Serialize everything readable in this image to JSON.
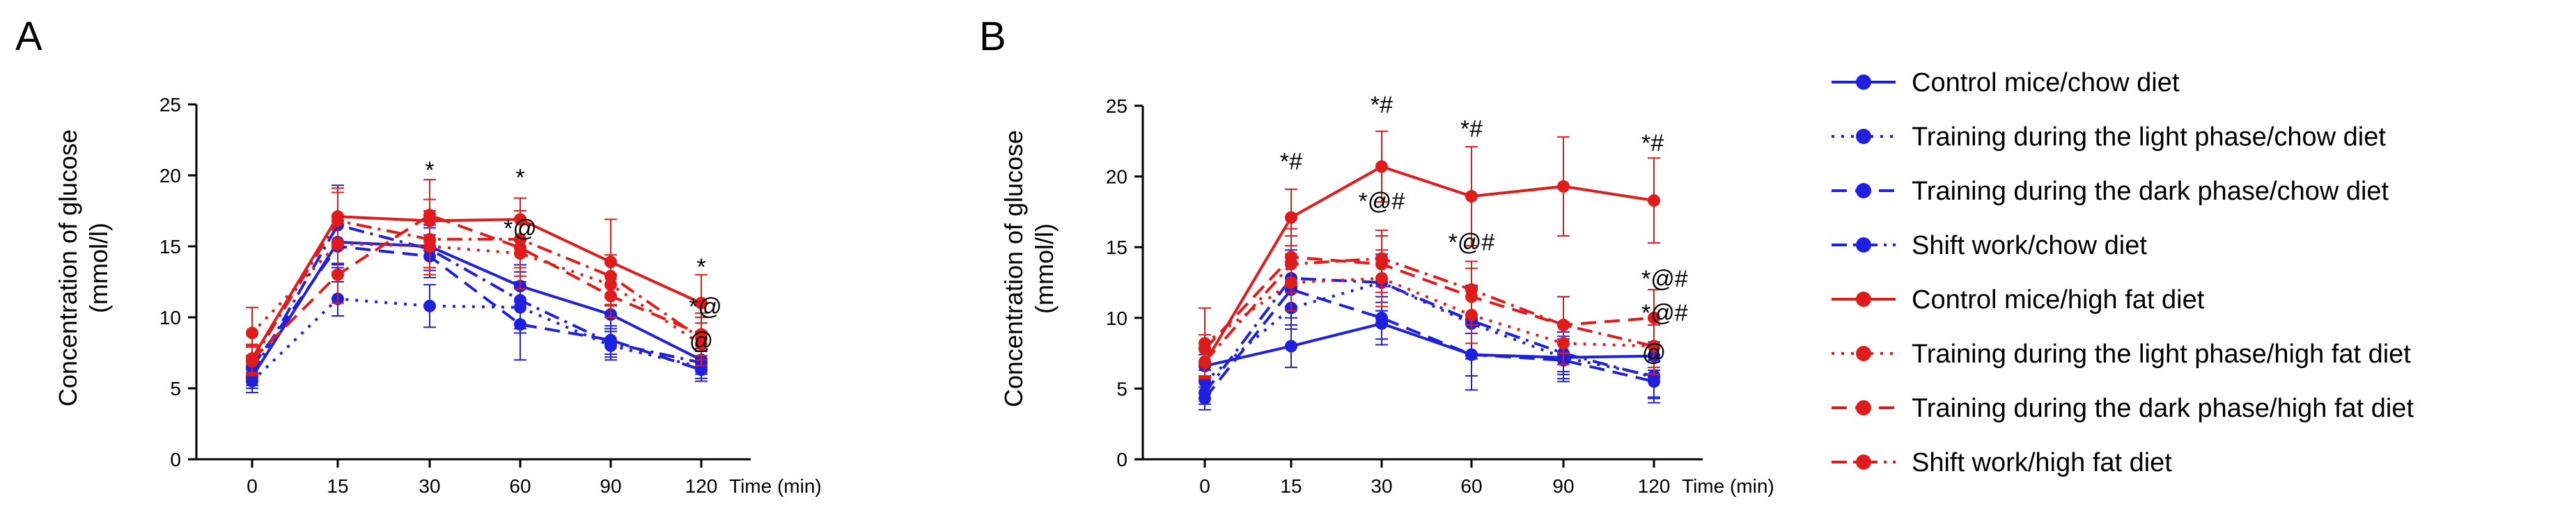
{
  "colors": {
    "blue": "#1f1fe0",
    "red": "#e01b1b",
    "axis": "#000000"
  },
  "legend": [
    {
      "label": "Control mice/chow diet",
      "color": "#1f1fe0",
      "dash": "solid"
    },
    {
      "label": "Training during the light phase/chow diet",
      "color": "#1f1fe0",
      "dash": "dot"
    },
    {
      "label": "Training during the dark phase/chow diet",
      "color": "#1f1fe0",
      "dash": "dash"
    },
    {
      "label": "Shift work/chow diet",
      "color": "#1f1fe0",
      "dash": "dashdot"
    },
    {
      "label": "Control mice/high fat diet",
      "color": "#e01b1b",
      "dash": "solid"
    },
    {
      "label": "Training during the light phase/high fat diet",
      "color": "#e01b1b",
      "dash": "dot"
    },
    {
      "label": "Training during the dark phase/high fat diet",
      "color": "#e01b1b",
      "dash": "dash"
    },
    {
      "label": "Shift work/high fat diet",
      "color": "#e01b1b",
      "dash": "dashdot"
    }
  ],
  "chart_data": [
    {
      "panel": "A",
      "type": "line",
      "ylabel_line1": "Concentration of glucose",
      "ylabel_line2": "(mmol/l)",
      "xunit": "Time (min)",
      "x": [
        0,
        15,
        30,
        60,
        90,
        120
      ],
      "yticks": [
        0,
        5,
        10,
        15,
        20,
        25
      ],
      "ylim": [
        0,
        25
      ],
      "series": [
        {
          "name": "Control mice/chow diet",
          "values": [
            5.8,
            15.3,
            15.0,
            12.2,
            10.2,
            7.0
          ],
          "err": [
            0.8,
            1.5,
            1.5,
            1.5,
            1.2,
            0.8
          ]
        },
        {
          "name": "Training during the light phase/chow diet",
          "values": [
            5.5,
            11.3,
            10.8,
            10.7,
            8.0,
            6.5
          ],
          "err": [
            0.8,
            1.2,
            1.5,
            1.8,
            1.0,
            0.8
          ]
        },
        {
          "name": "Training during the dark phase/chow diet",
          "values": [
            6.5,
            15.0,
            14.3,
            9.5,
            8.4,
            6.3
          ],
          "err": [
            0.8,
            1.5,
            1.5,
            2.5,
            1.0,
            0.8
          ]
        },
        {
          "name": "Shift work/chow diet",
          "values": [
            6.0,
            16.5,
            14.8,
            11.2,
            8.2,
            6.8
          ],
          "err": [
            0.8,
            2.8,
            1.5,
            2.0,
            1.0,
            0.8
          ]
        },
        {
          "name": "Control mice/high fat diet",
          "values": [
            7.1,
            17.1,
            16.8,
            16.9,
            13.9,
            11.0
          ],
          "err": [
            1.0,
            2.0,
            1.5,
            1.5,
            3.0,
            2.0
          ]
        },
        {
          "name": "Training during the light phase/high fat diet",
          "values": [
            8.9,
            15.2,
            15.0,
            14.5,
            12.3,
            8.1
          ],
          "err": [
            1.8,
            2.0,
            2.0,
            2.5,
            1.5,
            1.5
          ]
        },
        {
          "name": "Training during the dark phase/high fat diet",
          "values": [
            7.0,
            13.0,
            17.2,
            14.9,
            11.5,
            8.8
          ],
          "err": [
            1.0,
            2.0,
            2.5,
            2.0,
            1.5,
            1.5
          ]
        },
        {
          "name": "Shift work/high fat diet",
          "values": [
            6.9,
            16.8,
            15.5,
            15.5,
            12.9,
            8.5
          ],
          "err": [
            1.0,
            2.0,
            2.0,
            2.0,
            1.5,
            1.5
          ]
        }
      ],
      "annotations": [
        {
          "x": 30,
          "y": 19.8,
          "text": "*"
        },
        {
          "x": 60,
          "y": 19.3,
          "text": "*"
        },
        {
          "x": 60,
          "y": 15.7,
          "text": "*@"
        },
        {
          "x": 120,
          "y": 13.0,
          "text": "*"
        },
        {
          "x": 120,
          "y": 10.2,
          "text": "*@"
        },
        {
          "x": 120,
          "y": 7.8,
          "text": "@"
        }
      ]
    },
    {
      "panel": "B",
      "type": "line",
      "ylabel_line1": "Concentration of glucose",
      "ylabel_line2": "(mmol/l)",
      "xunit": "Time (min)",
      "x": [
        0,
        15,
        30,
        60,
        90,
        120
      ],
      "yticks": [
        0,
        5,
        10,
        15,
        20,
        25
      ],
      "ylim": [
        0,
        25
      ],
      "series": [
        {
          "name": "Control mice/chow diet",
          "values": [
            6.6,
            8.0,
            9.6,
            7.4,
            7.2,
            7.3
          ],
          "err": [
            0.8,
            1.5,
            1.5,
            1.5,
            1.0,
            1.0
          ]
        },
        {
          "name": "Training during the light phase/chow diet",
          "values": [
            5.5,
            10.7,
            12.5,
            9.6,
            7.2,
            5.9
          ],
          "err": [
            0.8,
            1.5,
            2.0,
            2.5,
            1.5,
            1.5
          ]
        },
        {
          "name": "Training during the dark phase/chow diet",
          "values": [
            4.3,
            12.0,
            10.0,
            7.4,
            7.0,
            5.5
          ],
          "err": [
            0.8,
            2.0,
            1.5,
            2.5,
            1.5,
            1.5
          ]
        },
        {
          "name": "Shift work/chow diet",
          "values": [
            4.7,
            12.8,
            12.5,
            9.8,
            7.5,
            5.8
          ],
          "err": [
            0.8,
            2.0,
            2.0,
            2.5,
            1.5,
            1.5
          ]
        },
        {
          "name": "Control mice/high fat diet",
          "values": [
            6.8,
            17.1,
            20.7,
            18.6,
            19.3,
            18.3
          ],
          "err": [
            1.0,
            2.0,
            2.5,
            3.5,
            3.5,
            3.0
          ]
        },
        {
          "name": "Training during the light phase/high fat diet",
          "values": [
            8.2,
            12.5,
            12.8,
            10.2,
            8.2,
            8.0
          ],
          "err": [
            2.5,
            2.0,
            2.0,
            2.0,
            1.5,
            1.5
          ]
        },
        {
          "name": "Training during the dark phase/high fat diet",
          "values": [
            7.8,
            14.3,
            13.8,
            11.5,
            9.5,
            10.0
          ],
          "err": [
            1.0,
            2.0,
            2.0,
            2.0,
            2.0,
            2.0
          ]
        },
        {
          "name": "Shift work/high fat diet",
          "values": [
            6.9,
            13.8,
            14.2,
            12.0,
            9.5,
            8.0
          ],
          "err": [
            1.0,
            2.0,
            2.0,
            2.0,
            2.0,
            2.0
          ]
        }
      ],
      "annotations": [
        {
          "x": 15,
          "y": 20.5,
          "text": "*#"
        },
        {
          "x": 30,
          "y": 24.5,
          "text": "*#"
        },
        {
          "x": 30,
          "y": 17.7,
          "text": "*@#"
        },
        {
          "x": 60,
          "y": 22.8,
          "text": "*#"
        },
        {
          "x": 60,
          "y": 14.8,
          "text": "*@#"
        },
        {
          "x": 120,
          "y": 21.8,
          "text": "*#"
        },
        {
          "x": 120,
          "y": 12.2,
          "text": "*@#"
        },
        {
          "x": 120,
          "y": 9.8,
          "text": "*@#"
        },
        {
          "x": 120,
          "y": 7.0,
          "text": "@"
        }
      ]
    }
  ]
}
